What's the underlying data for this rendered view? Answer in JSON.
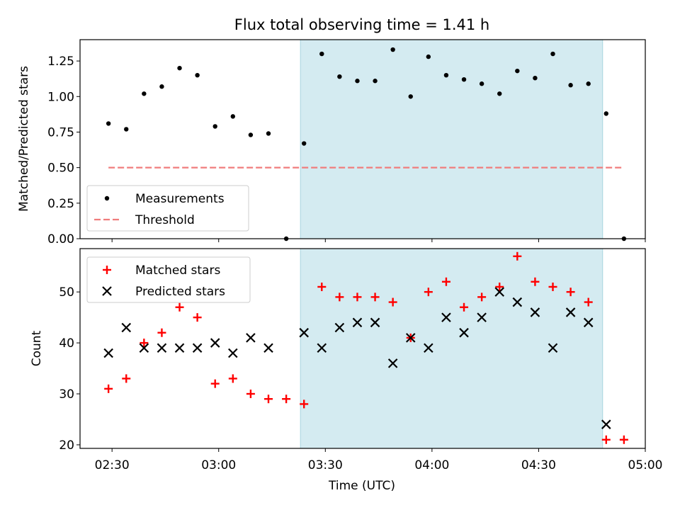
{
  "chart_data": [
    {
      "type": "scatter",
      "title": "Flux total observing time = 1.41 h",
      "xlabel": "",
      "ylabel": "Matched/Predicted stars",
      "ylim": [
        0,
        1.4
      ],
      "yticks": [
        "0.00",
        "0.25",
        "0.50",
        "0.75",
        "1.00",
        "1.25"
      ],
      "ytick_values": [
        0,
        0.25,
        0.5,
        0.75,
        1.0,
        1.25
      ],
      "xlim": [
        "02:21",
        "05:00"
      ],
      "shaded_range": [
        "03:23",
        "04:48"
      ],
      "shade_color": "#d4ebf1",
      "legend_position": "lower-left",
      "series": [
        {
          "name": "Measurements",
          "marker": "dot",
          "color": "#000000",
          "x": [
            "02:29",
            "02:34",
            "02:39",
            "02:44",
            "02:49",
            "02:54",
            "02:59",
            "03:04",
            "03:09",
            "03:14",
            "03:19",
            "03:24",
            "03:29",
            "03:34",
            "03:39",
            "03:44",
            "03:49",
            "03:54",
            "03:59",
            "04:04",
            "04:09",
            "04:14",
            "04:19",
            "04:24",
            "04:29",
            "04:34",
            "04:39",
            "04:44",
            "04:49",
            "04:54"
          ],
          "y": [
            0.81,
            0.77,
            1.02,
            1.07,
            1.2,
            1.15,
            0.79,
            0.86,
            0.73,
            0.74,
            0.0,
            0.67,
            1.3,
            1.14,
            1.11,
            1.11,
            1.33,
            1.0,
            1.28,
            1.15,
            1.12,
            1.09,
            1.02,
            1.18,
            1.13,
            1.3,
            1.08,
            1.09,
            0.88,
            0.0
          ]
        },
        {
          "name": "Threshold",
          "marker": "dashed-line",
          "color": "#f07c7c",
          "x": [
            "02:29",
            "04:54"
          ],
          "y": [
            0.5,
            0.5
          ]
        }
      ]
    },
    {
      "type": "scatter",
      "title": "",
      "xlabel": "Time (UTC)",
      "ylabel": "Count",
      "ylim": [
        19.3,
        58.5
      ],
      "yticks": [
        "20",
        "30",
        "40",
        "50"
      ],
      "ytick_values": [
        20,
        30,
        40,
        50
      ],
      "xticks": [
        "02:30",
        "03:00",
        "03:30",
        "04:00",
        "04:30",
        "05:00"
      ],
      "xtick_values": [
        "02:30",
        "03:00",
        "03:30",
        "04:00",
        "04:30",
        "05:00"
      ],
      "xlim": [
        "02:21",
        "05:00"
      ],
      "shaded_range": [
        "03:23",
        "04:48"
      ],
      "shade_color": "#d4ebf1",
      "legend_position": "upper-left",
      "series": [
        {
          "name": "Matched stars",
          "marker": "plus",
          "color": "#ff0000",
          "x": [
            "02:29",
            "02:34",
            "02:39",
            "02:44",
            "02:49",
            "02:54",
            "02:59",
            "03:04",
            "03:09",
            "03:14",
            "03:19",
            "03:24",
            "03:29",
            "03:34",
            "03:39",
            "03:44",
            "03:49",
            "03:54",
            "03:59",
            "04:04",
            "04:09",
            "04:14",
            "04:19",
            "04:24",
            "04:29",
            "04:34",
            "04:39",
            "04:44",
            "04:49",
            "04:54"
          ],
          "y": [
            31,
            33,
            40,
            42,
            47,
            45,
            32,
            33,
            30,
            29,
            29,
            28,
            51,
            49,
            49,
            49,
            48,
            41,
            50,
            52,
            47,
            49,
            51,
            57,
            52,
            51,
            50,
            48,
            21,
            21
          ]
        },
        {
          "name": "Predicted stars",
          "marker": "x",
          "color": "#000000",
          "x": [
            "02:29",
            "02:34",
            "02:39",
            "02:44",
            "02:49",
            "02:54",
            "02:59",
            "03:04",
            "03:09",
            "03:14",
            "03:24",
            "03:29",
            "03:34",
            "03:39",
            "03:44",
            "03:49",
            "03:54",
            "03:59",
            "04:04",
            "04:09",
            "04:14",
            "04:19",
            "04:24",
            "04:29",
            "04:34",
            "04:39",
            "04:44",
            "04:49"
          ],
          "y": [
            38,
            43,
            39,
            39,
            39,
            39,
            40,
            38,
            41,
            39,
            42,
            39,
            43,
            44,
            44,
            36,
            41,
            39,
            45,
            42,
            45,
            50,
            48,
            46,
            39,
            46,
            44,
            24
          ]
        }
      ]
    }
  ]
}
